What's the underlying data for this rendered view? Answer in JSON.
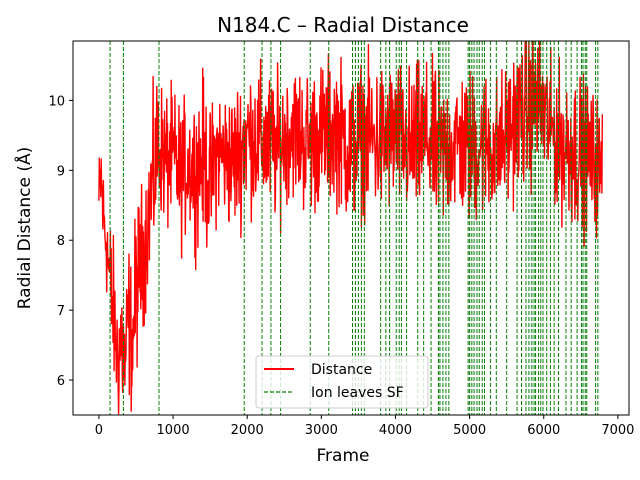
{
  "chart_data": {
    "type": "line",
    "title": "N184.C – Radial Distance",
    "xlabel": "Frame",
    "ylabel": "Radial Distance (Å)",
    "xlim": [
      -350,
      7150
    ],
    "ylim": [
      5.5,
      10.85
    ],
    "xticks": [
      0,
      1000,
      2000,
      3000,
      4000,
      5000,
      6000,
      7000
    ],
    "xtick_labels": [
      "0",
      "1000",
      "2000",
      "3000",
      "4000",
      "5000",
      "6000",
      "7000"
    ],
    "yticks": [
      6,
      7,
      8,
      9,
      10
    ],
    "ytick_labels": [
      "6",
      "7",
      "8",
      "9",
      "10"
    ],
    "grid": false,
    "legend_position": "lower center",
    "series": [
      {
        "name": "Distance",
        "style": "solid",
        "color": "#ff0000",
        "x": [
          0,
          30,
          60,
          100,
          150,
          200,
          250,
          300,
          350,
          400,
          450,
          500,
          550,
          600,
          650,
          700,
          750,
          800,
          850,
          900,
          1000,
          1100,
          1200,
          1300,
          1400,
          1500,
          1600,
          1700,
          1800,
          2000,
          2200,
          2400,
          2600,
          2800,
          3000,
          3200,
          3400,
          3600,
          3800,
          4000,
          4200,
          4400,
          4600,
          4800,
          5000,
          5200,
          5400,
          5600,
          5800,
          5900,
          6000,
          6100,
          6200,
          6400,
          6600,
          6790
        ],
        "y": [
          8.5,
          8.9,
          8.3,
          8.0,
          7.4,
          6.9,
          6.3,
          6.6,
          6.2,
          6.9,
          6.5,
          7.3,
          7.6,
          7.8,
          8.2,
          8.6,
          9.0,
          9.4,
          9.3,
          9.1,
          9.2,
          8.9,
          9.1,
          9.0,
          9.2,
          8.8,
          9.3,
          9.2,
          9.1,
          9.5,
          9.4,
          9.3,
          9.6,
          9.4,
          9.5,
          9.6,
          9.3,
          9.5,
          9.4,
          9.5,
          9.3,
          9.5,
          9.2,
          9.4,
          9.3,
          9.4,
          9.3,
          9.7,
          9.9,
          10.0,
          9.8,
          9.6,
          9.4,
          9.3,
          9.2,
          9.0
        ],
        "spread": [
          0.35,
          0.4,
          0.4,
          0.35,
          0.5,
          0.5,
          0.45,
          0.6,
          0.45,
          0.55,
          0.5,
          0.6,
          0.55,
          0.5,
          0.45,
          0.5,
          0.6,
          0.5,
          0.45,
          0.5,
          0.45,
          0.5,
          0.45,
          0.5,
          0.55,
          0.5,
          0.45,
          0.45,
          0.5,
          0.5,
          0.5,
          0.5,
          0.45,
          0.5,
          0.5,
          0.5,
          0.55,
          0.5,
          0.55,
          0.5,
          0.55,
          0.5,
          0.55,
          0.5,
          0.55,
          0.5,
          0.5,
          0.5,
          0.55,
          0.5,
          0.5,
          0.45,
          0.5,
          0.55,
          0.5,
          0.45
        ]
      },
      {
        "name": "Ion leaves SF",
        "style": "dashed",
        "color": "#008000",
        "x": [
          150,
          330,
          810,
          1960,
          2200,
          2320,
          2450,
          2850,
          3100,
          3420,
          3460,
          3500,
          3540,
          3580,
          3800,
          3870,
          3920,
          4010,
          4050,
          4080,
          4150,
          4300,
          4380,
          4480,
          4580,
          4600,
          4640,
          4680,
          4720,
          4980,
          5000,
          5030,
          5060,
          5100,
          5130,
          5170,
          5200,
          5280,
          5360,
          5500,
          5640,
          5700,
          5760,
          5800,
          5840,
          5870,
          5890,
          5930,
          5960,
          5990,
          6040,
          6090,
          6140,
          6200,
          6300,
          6370,
          6450,
          6510,
          6530,
          6560,
          6580,
          6700,
          6730
        ]
      }
    ]
  }
}
